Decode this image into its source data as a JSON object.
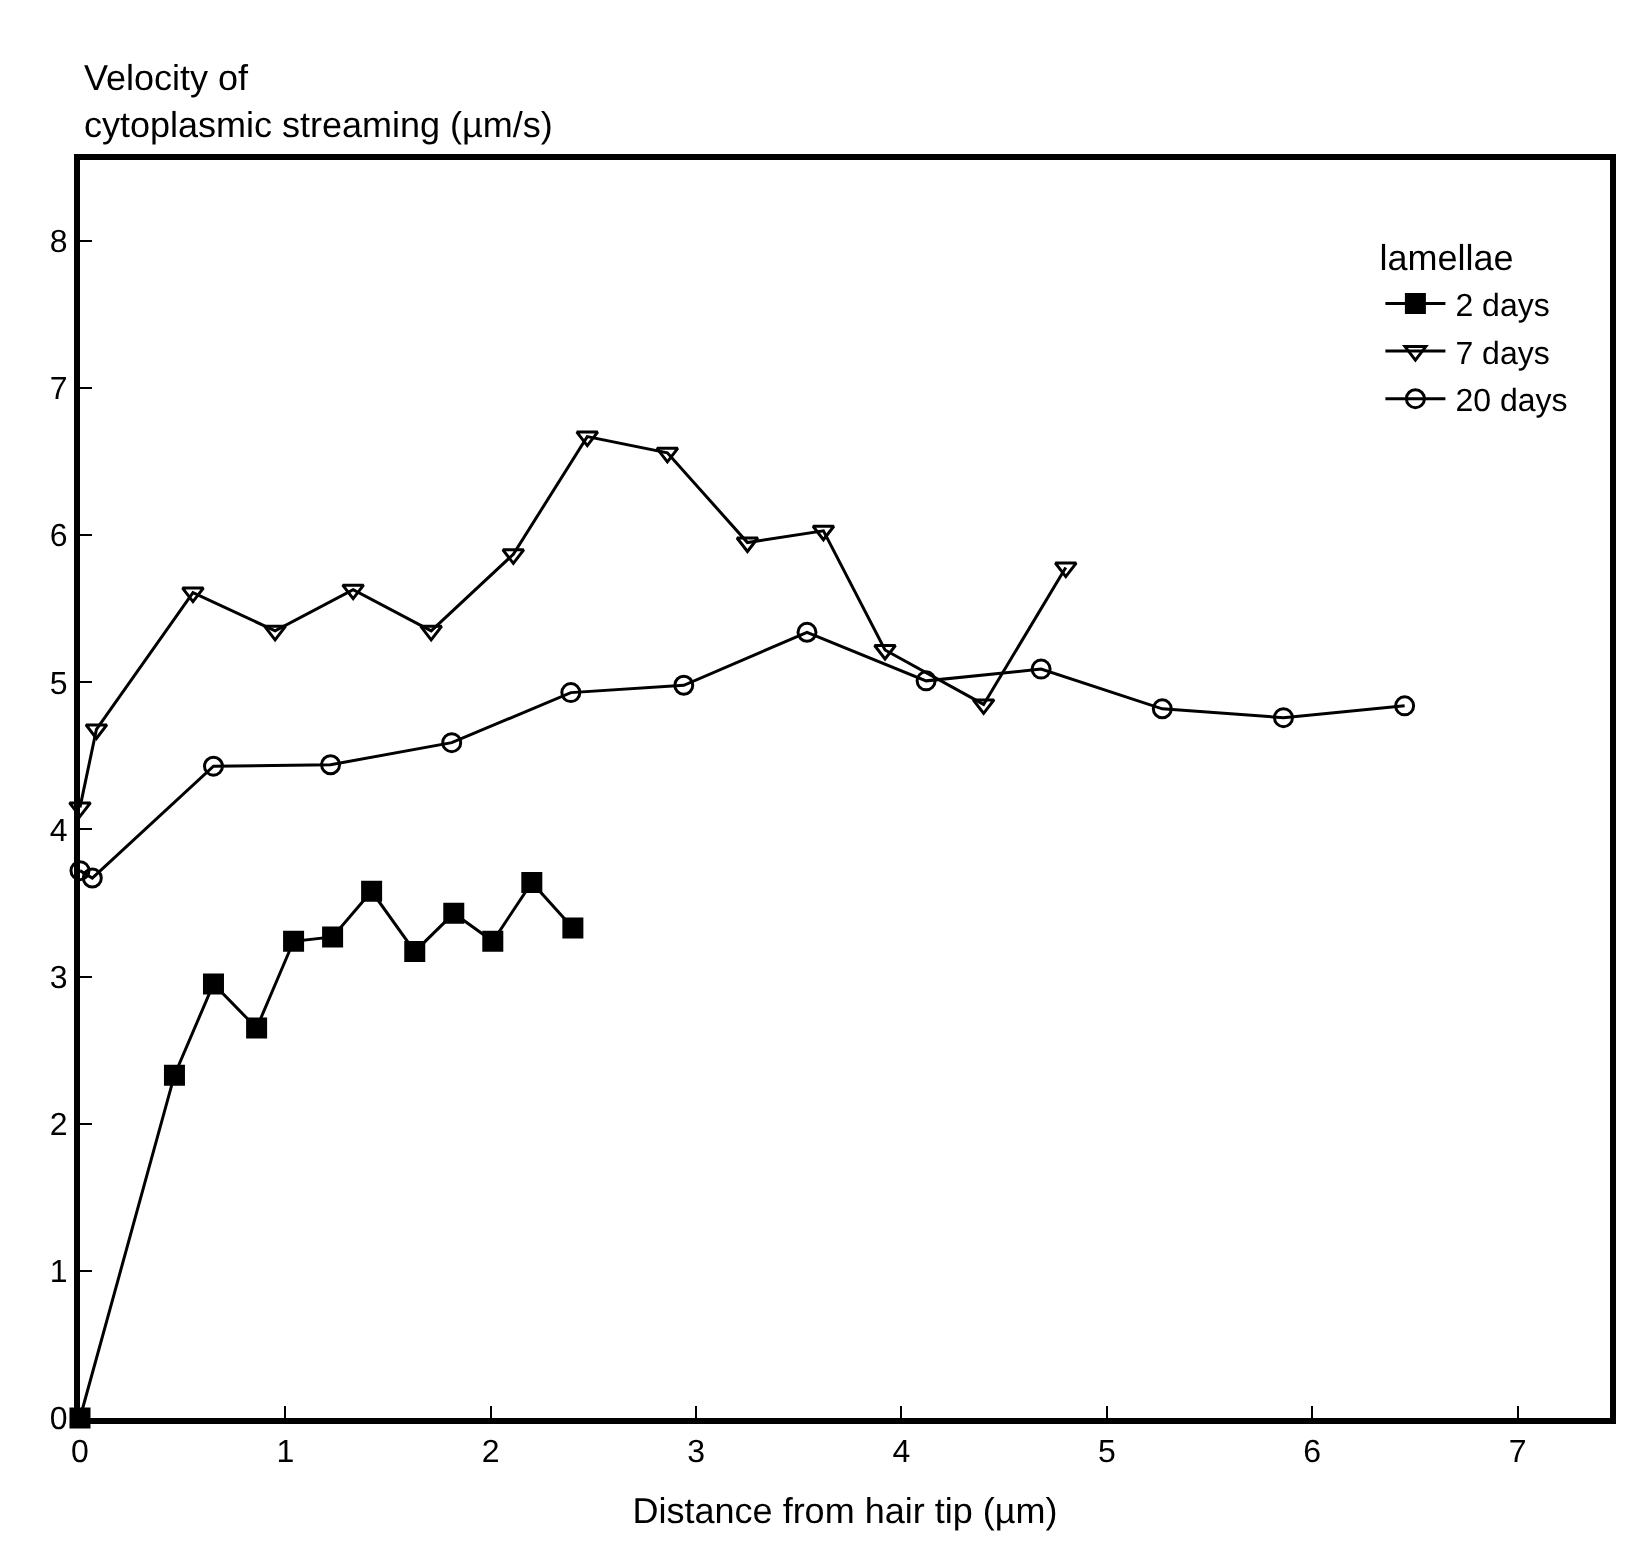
{
  "chart_data": {
    "type": "line",
    "ylabel": "Velocity of\ncytoplasmic streaming (µm/s)",
    "xlabel": "Distance from hair tip (µm)",
    "legend_title": "lamellae",
    "series": [
      {
        "name": "2 days",
        "color": "#000000",
        "marker": "square",
        "x": [
          0,
          0.46,
          0.65,
          0.86,
          1.04,
          1.23,
          1.42,
          1.63,
          1.82,
          2.01,
          2.2,
          2.4
        ],
        "values": [
          0,
          2.33,
          2.95,
          2.65,
          3.24,
          3.27,
          3.58,
          3.17,
          3.43,
          3.24,
          3.64,
          3.33
        ]
      },
      {
        "name": "7 days",
        "color": "#000000",
        "marker": "triangle",
        "x": [
          0,
          0.08,
          0.55,
          0.95,
          1.33,
          1.71,
          2.11,
          2.47,
          2.86,
          3.25,
          3.62,
          3.92,
          4.4,
          4.8
        ],
        "values": [
          4.15,
          4.68,
          5.61,
          5.35,
          5.63,
          5.35,
          5.87,
          6.67,
          6.56,
          5.95,
          6.03,
          5.22,
          4.85,
          5.78
        ]
      },
      {
        "name": "20 days",
        "color": "#000000",
        "marker": "circle",
        "x": [
          0,
          0.06,
          0.65,
          1.22,
          1.81,
          2.39,
          2.94,
          3.54,
          4.12,
          4.68,
          5.27,
          5.86,
          6.45
        ],
        "values": [
          3.72,
          3.67,
          4.43,
          4.44,
          4.59,
          4.93,
          4.98,
          5.34,
          5.01,
          5.09,
          4.82,
          4.76,
          4.84
        ]
      }
    ],
    "xlim": [
      0,
      7.45
    ],
    "xticks": [
      0,
      1,
      2,
      3,
      4,
      5,
      6,
      7
    ],
    "ylim": [
      0,
      8.55
    ],
    "yticks": [
      0,
      1,
      2,
      3,
      4,
      5,
      6,
      7,
      8
    ],
    "grid": false,
    "legend": "top right",
    "line_style": "solid"
  }
}
